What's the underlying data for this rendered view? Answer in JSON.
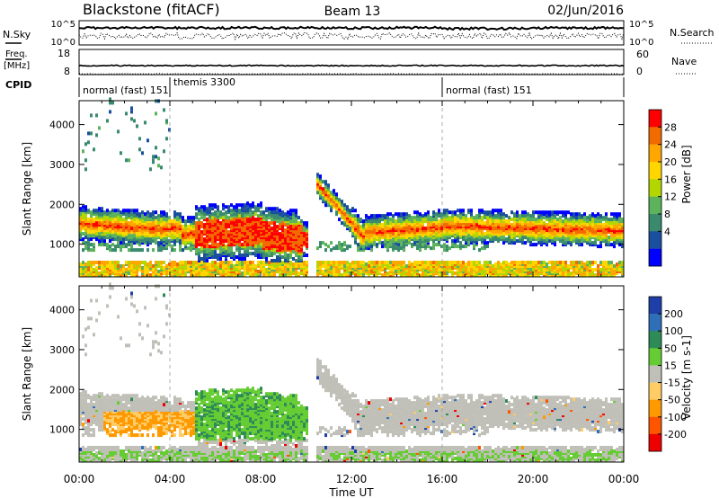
{
  "header": {
    "radar": "Blackstone (fitACF)",
    "beam": "Beam 13",
    "date": "02/Jun/2016"
  },
  "top_panels": {
    "nsky_label": "N.Sky",
    "nsky_ticks": [
      "10^5",
      "10^0"
    ],
    "nsearch_label": "N.Search",
    "nsearch_ticks": [
      "10^5",
      "10^0"
    ],
    "freq_label_1": "Freq.",
    "freq_label_2": "[MHz]",
    "freq_ticks": [
      "18",
      "8"
    ],
    "nave_label": "Nave",
    "nave_ticks": [
      "60",
      "0"
    ],
    "cpid_label": "CPID",
    "cpid_segments": [
      {
        "label": "normal (fast) 151",
        "start_hour": 0,
        "end_hour": 4
      },
      {
        "label": "themis 3300",
        "start_hour": 4,
        "end_hour": 16
      },
      {
        "label": "normal (fast) 151",
        "start_hour": 16,
        "end_hour": 24
      }
    ],
    "cpid_extra": "151"
  },
  "chart_data": [
    {
      "type": "heatmap",
      "name": "power",
      "ylabel": "Slant Range [km]",
      "ylim": [
        180,
        4600
      ],
      "yticks": [
        1000,
        2000,
        3000,
        4000
      ],
      "colorbar": {
        "label": "Power [dB]",
        "ticks": [
          "28",
          "24",
          "20",
          "16",
          "12",
          "8",
          "4"
        ],
        "colors": [
          "#ff0000",
          "#f26b00",
          "#ffa600",
          "#ffd600",
          "#b3d600",
          "#5cb35c",
          "#3a8a6e",
          "#1a4f9e",
          "#0000ff"
        ]
      }
    },
    {
      "type": "heatmap",
      "name": "velocity",
      "ylabel": "Slant Range [km]",
      "ylim": [
        180,
        4600
      ],
      "yticks": [
        1000,
        2000,
        3000,
        4000
      ],
      "colorbar": {
        "label": "Velocity [m s-1]",
        "ticks": [
          "200",
          "100",
          "50",
          "15",
          "-15",
          "-50",
          "-100",
          "-200"
        ],
        "colors": [
          "#1e3fa8",
          "#2f6fb8",
          "#2e8b57",
          "#66cc33",
          "#c0c0b8",
          "#ffcc66",
          "#ff9900",
          "#ff5500",
          "#ee0000"
        ]
      }
    }
  ],
  "xaxis": {
    "label": "Time UT",
    "ticks": [
      "00:00",
      "04:00",
      "08:00",
      "12:00",
      "16:00",
      "20:00",
      "00:00"
    ],
    "xlim_hours": [
      0,
      24
    ]
  }
}
